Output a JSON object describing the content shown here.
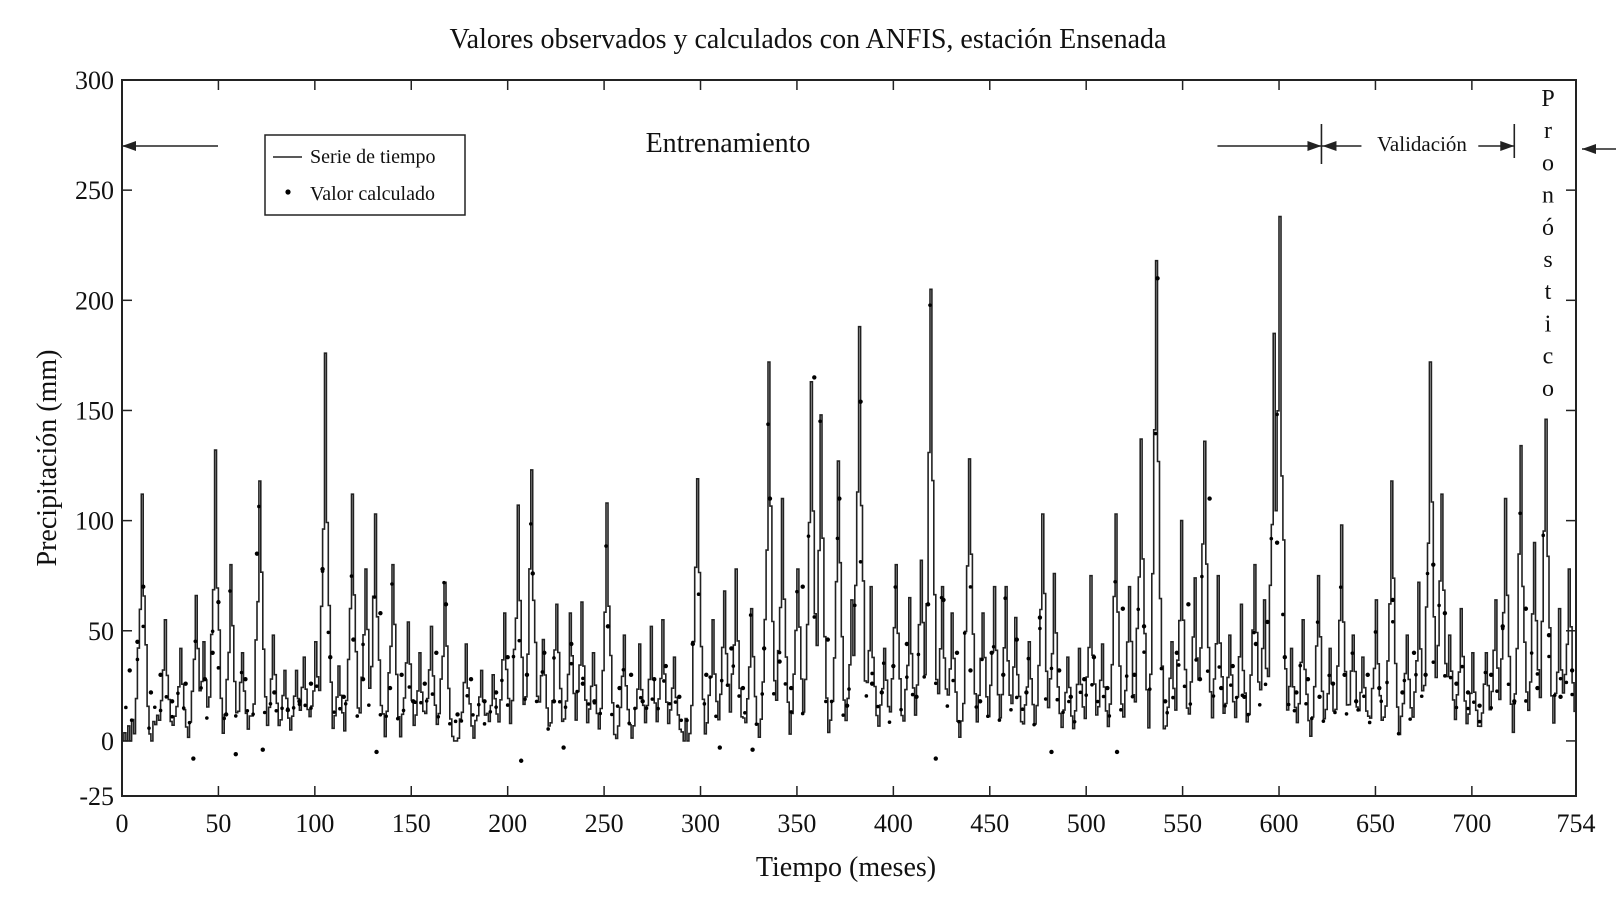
{
  "chart_data": {
    "type": "line",
    "title": "Valores observados y calculados con ANFIS, estación Ensenada",
    "xlabel": "Tiempo (meses)",
    "ylabel": "Precipitación (mm)",
    "xlim": [
      0,
      754
    ],
    "ylim": [
      -25,
      300
    ],
    "x_ticks": [
      0,
      50,
      100,
      150,
      200,
      250,
      300,
      350,
      400,
      450,
      500,
      550,
      600,
      650,
      700,
      754
    ],
    "y_ticks": [
      -25,
      0,
      50,
      100,
      150,
      200,
      250,
      300
    ],
    "legend": {
      "position": "top-left",
      "entries": [
        "Serie de tiempo",
        "Valor calculado"
      ]
    },
    "series_colors": {
      "line": "#222222",
      "points": "#000000"
    },
    "phases": [
      {
        "name": "Entrenamiento",
        "x_start": 0,
        "x_end": 622
      },
      {
        "name": "Validación",
        "x_start": 622,
        "x_end": 722
      },
      {
        "name": "Pronóstico",
        "x_start": 722,
        "x_end": 754
      }
    ],
    "annual_peaks": [
      [
        10,
        112
      ],
      [
        22,
        55
      ],
      [
        30,
        42
      ],
      [
        38,
        66
      ],
      [
        42,
        45
      ],
      [
        48,
        132
      ],
      [
        56,
        80
      ],
      [
        62,
        40
      ],
      [
        71,
        118
      ],
      [
        78,
        48
      ],
      [
        84,
        32
      ],
      [
        90,
        32
      ],
      [
        94,
        38
      ],
      [
        100,
        45
      ],
      [
        105,
        176
      ],
      [
        112,
        34
      ],
      [
        119,
        112
      ],
      [
        126,
        78
      ],
      [
        131,
        103
      ],
      [
        140,
        80
      ],
      [
        148,
        54
      ],
      [
        154,
        40
      ],
      [
        160,
        52
      ],
      [
        167,
        72
      ],
      [
        178,
        44
      ],
      [
        186,
        32
      ],
      [
        192,
        30
      ],
      [
        198,
        58
      ],
      [
        205,
        107
      ],
      [
        212,
        123
      ],
      [
        218,
        46
      ],
      [
        225,
        62
      ],
      [
        232,
        58
      ],
      [
        238,
        63
      ],
      [
        244,
        40
      ],
      [
        251,
        108
      ],
      [
        260,
        48
      ],
      [
        268,
        44
      ],
      [
        274,
        52
      ],
      [
        280,
        55
      ],
      [
        286,
        38
      ],
      [
        298,
        119
      ],
      [
        306,
        55
      ],
      [
        312,
        68
      ],
      [
        318,
        78
      ],
      [
        326,
        60
      ],
      [
        335,
        172
      ],
      [
        342,
        110
      ],
      [
        350,
        78
      ],
      [
        357,
        163
      ],
      [
        362,
        148
      ],
      [
        371,
        127
      ],
      [
        378,
        64
      ],
      [
        382,
        188
      ],
      [
        388,
        70
      ],
      [
        395,
        42
      ],
      [
        401,
        80
      ],
      [
        408,
        65
      ],
      [
        414,
        82
      ],
      [
        419,
        205
      ],
      [
        425,
        70
      ],
      [
        430,
        58
      ],
      [
        439,
        128
      ],
      [
        446,
        58
      ],
      [
        452,
        70
      ],
      [
        458,
        70
      ],
      [
        463,
        56
      ],
      [
        470,
        45
      ],
      [
        477,
        103
      ],
      [
        483,
        76
      ],
      [
        490,
        38
      ],
      [
        496,
        42
      ],
      [
        502,
        75
      ],
      [
        508,
        44
      ],
      [
        515,
        103
      ],
      [
        522,
        70
      ],
      [
        528,
        137
      ],
      [
        536,
        218
      ],
      [
        544,
        45
      ],
      [
        549,
        100
      ],
      [
        556,
        74
      ],
      [
        561,
        136
      ],
      [
        568,
        75
      ],
      [
        574,
        48
      ],
      [
        580,
        62
      ],
      [
        587,
        80
      ],
      [
        592,
        64
      ],
      [
        597,
        185
      ],
      [
        600,
        238
      ],
      [
        606,
        42
      ],
      [
        612,
        55
      ],
      [
        620,
        75
      ],
      [
        626,
        42
      ],
      [
        632,
        98
      ],
      [
        638,
        48
      ],
      [
        643,
        38
      ],
      [
        650,
        64
      ],
      [
        658,
        118
      ],
      [
        666,
        48
      ],
      [
        672,
        72
      ],
      [
        678,
        172
      ],
      [
        684,
        112
      ],
      [
        688,
        48
      ],
      [
        694,
        60
      ],
      [
        700,
        40
      ],
      [
        707,
        40
      ],
      [
        712,
        64
      ],
      [
        717,
        110
      ],
      [
        725,
        134
      ],
      [
        732,
        90
      ],
      [
        738,
        146
      ],
      [
        745,
        60
      ],
      [
        750,
        78
      ]
    ],
    "calculated_points": [
      [
        4,
        32
      ],
      [
        8,
        45
      ],
      [
        11,
        70
      ],
      [
        15,
        22
      ],
      [
        20,
        30
      ],
      [
        26,
        18
      ],
      [
        33,
        26
      ],
      [
        37,
        -8
      ],
      [
        43,
        28
      ],
      [
        47,
        40
      ],
      [
        50,
        63
      ],
      [
        54,
        12
      ],
      [
        59,
        -6
      ],
      [
        64,
        28
      ],
      [
        70,
        85
      ],
      [
        73,
        -4
      ],
      [
        79,
        22
      ],
      [
        86,
        14
      ],
      [
        92,
        18
      ],
      [
        98,
        26
      ],
      [
        104,
        78
      ],
      [
        108,
        38
      ],
      [
        115,
        20
      ],
      [
        120,
        46
      ],
      [
        125,
        28
      ],
      [
        132,
        -5
      ],
      [
        134,
        58
      ],
      [
        139,
        24
      ],
      [
        145,
        30
      ],
      [
        151,
        18
      ],
      [
        157,
        26
      ],
      [
        163,
        40
      ],
      [
        168,
        62
      ],
      [
        174,
        12
      ],
      [
        181,
        28
      ],
      [
        188,
        18
      ],
      [
        194,
        22
      ],
      [
        200,
        38
      ],
      [
        207,
        -9
      ],
      [
        210,
        30
      ],
      [
        213,
        76
      ],
      [
        219,
        40
      ],
      [
        224,
        18
      ],
      [
        229,
        -3
      ],
      [
        233,
        44
      ],
      [
        239,
        26
      ],
      [
        245,
        18
      ],
      [
        252,
        52
      ],
      [
        258,
        24
      ],
      [
        264,
        30
      ],
      [
        270,
        18
      ],
      [
        276,
        28
      ],
      [
        282,
        34
      ],
      [
        289,
        20
      ],
      [
        296,
        44
      ],
      [
        303,
        30
      ],
      [
        310,
        -3
      ],
      [
        316,
        42
      ],
      [
        322,
        24
      ],
      [
        327,
        -4
      ],
      [
        333,
        42
      ],
      [
        336,
        110
      ],
      [
        341,
        36
      ],
      [
        347,
        24
      ],
      [
        353,
        70
      ],
      [
        359,
        165
      ],
      [
        366,
        46
      ],
      [
        372,
        110
      ],
      [
        376,
        16
      ],
      [
        383,
        154
      ],
      [
        389,
        26
      ],
      [
        394,
        22
      ],
      [
        400,
        34
      ],
      [
        407,
        44
      ],
      [
        412,
        20
      ],
      [
        418,
        62
      ],
      [
        422,
        -8
      ],
      [
        426,
        64
      ],
      [
        433,
        40
      ],
      [
        440,
        32
      ],
      [
        445,
        18
      ],
      [
        451,
        40
      ],
      [
        457,
        30
      ],
      [
        464,
        46
      ],
      [
        469,
        22
      ],
      [
        476,
        56
      ],
      [
        482,
        -5
      ],
      [
        486,
        32
      ],
      [
        492,
        20
      ],
      [
        499,
        28
      ],
      [
        504,
        38
      ],
      [
        511,
        24
      ],
      [
        516,
        -5
      ],
      [
        519,
        60
      ],
      [
        525,
        30
      ],
      [
        530,
        52
      ],
      [
        537,
        210
      ],
      [
        541,
        18
      ],
      [
        547,
        40
      ],
      [
        553,
        62
      ],
      [
        559,
        28
      ],
      [
        564,
        110
      ],
      [
        570,
        24
      ],
      [
        576,
        34
      ],
      [
        582,
        20
      ],
      [
        588,
        44
      ],
      [
        594,
        54
      ],
      [
        599,
        90
      ],
      [
        603,
        38
      ],
      [
        609,
        22
      ],
      [
        615,
        28
      ],
      [
        621,
        20
      ],
      [
        628,
        26
      ],
      [
        634,
        30
      ],
      [
        640,
        18
      ],
      [
        646,
        30
      ],
      [
        652,
        24
      ],
      [
        659,
        64
      ],
      [
        664,
        22
      ],
      [
        670,
        40
      ],
      [
        676,
        30
      ],
      [
        680,
        80
      ],
      [
        686,
        58
      ],
      [
        692,
        26
      ],
      [
        698,
        22
      ],
      [
        704,
        16
      ],
      [
        710,
        30
      ],
      [
        716,
        52
      ],
      [
        722,
        18
      ],
      [
        728,
        60
      ],
      [
        734,
        24
      ],
      [
        740,
        48
      ],
      [
        746,
        20
      ],
      [
        752,
        32
      ]
    ],
    "baseline_level": 8
  },
  "labels": {
    "entrenamiento": "Entrenamiento",
    "validacion": "Validación",
    "pronostico": "Pronóstico",
    "pronostico_letters": [
      "P",
      "r",
      "o",
      "n",
      "ó",
      "s",
      "t",
      "i",
      "c",
      "o"
    ]
  }
}
